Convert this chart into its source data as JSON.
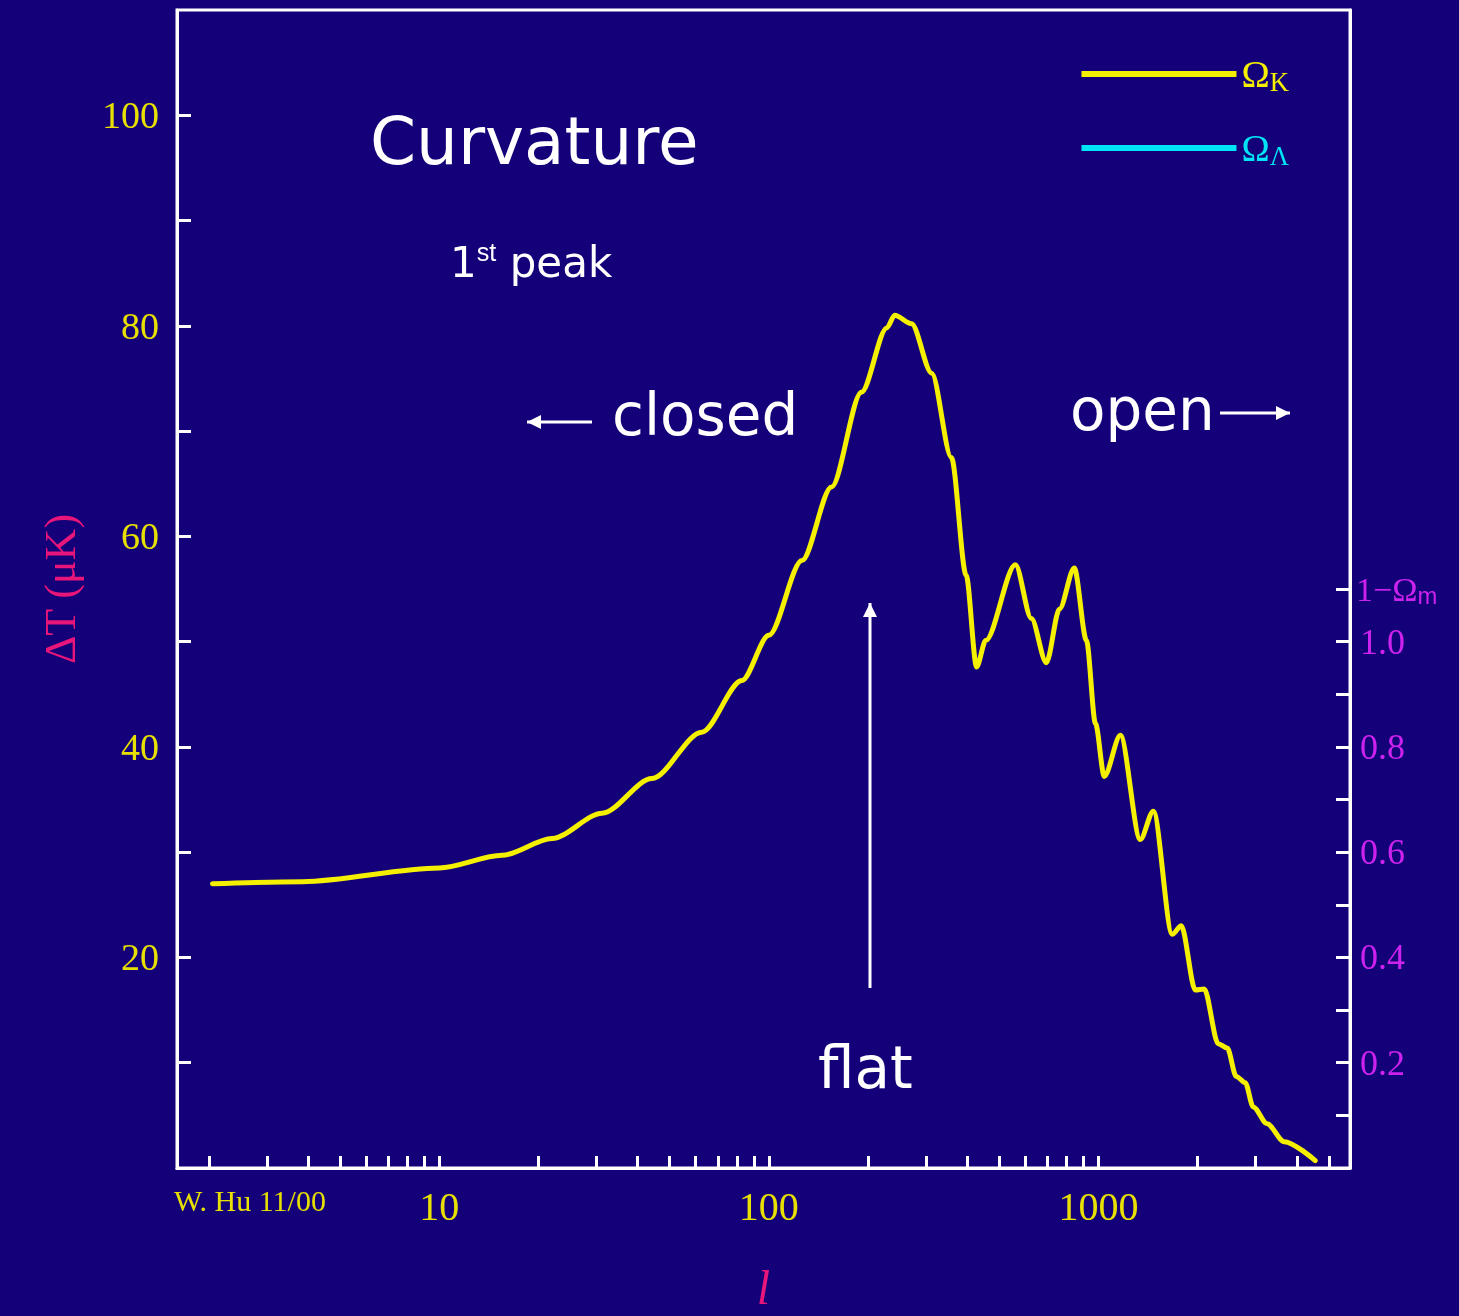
{
  "chart_data": {
    "type": "line",
    "title": "Curvature",
    "xlabel": "l",
    "ylabel": "ΔT (μK)",
    "y2label": "1−Ω$_{m}$",
    "annotations": [
      "1$^{st}$ peak",
      "closed",
      "open",
      "flat",
      "W. Hu 11/00"
    ],
    "log": "x",
    "legend": "top right",
    "grid": false,
    "marker": "none",
    "line_style": "solid",
    "xlim": [
      1.6,
      5800
    ],
    "xticks": [
      {
        "value": 2,
        "label": null
      },
      {
        "value": 3,
        "label": null
      },
      {
        "value": 4,
        "label": null
      },
      {
        "value": 5,
        "label": null
      },
      {
        "value": 6,
        "label": null
      },
      {
        "value": 7,
        "label": null
      },
      {
        "value": 8,
        "label": null
      },
      {
        "value": 9,
        "label": null
      },
      10,
      {
        "value": 20,
        "label": null
      },
      {
        "value": 30,
        "label": null
      },
      {
        "value": 40,
        "label": null
      },
      {
        "value": 50,
        "label": null
      },
      {
        "value": 60,
        "label": null
      },
      {
        "value": 70,
        "label": null
      },
      {
        "value": 80,
        "label": null
      },
      {
        "value": 90,
        "label": null
      },
      100,
      {
        "value": 200,
        "label": null
      },
      {
        "value": 300,
        "label": null
      },
      {
        "value": 400,
        "label": null
      },
      {
        "value": 500,
        "label": null
      },
      {
        "value": 600,
        "label": null
      },
      {
        "value": 700,
        "label": null
      },
      {
        "value": 800,
        "label": null
      },
      {
        "value": 900,
        "label": null
      },
      1000,
      {
        "value": 2000,
        "label": null
      },
      {
        "value": 3000,
        "label": null
      },
      {
        "value": 4000,
        "label": null
      },
      {
        "value": 5000,
        "label": null
      }
    ],
    "ylim": [
      0,
      110
    ],
    "yticks": [
      {
        "value": 10,
        "label": null
      },
      20,
      {
        "value": 30,
        "label": null
      },
      40,
      {
        "value": 50,
        "label": null
      },
      60,
      {
        "value": 70,
        "label": null
      },
      80,
      {
        "value": 90,
        "label": null
      },
      100
    ],
    "y2lim": [
      0,
      2.2
    ],
    "y2ticks": [
      {
        "value": 0.1,
        "label": null
      },
      0.2,
      {
        "value": 0.3,
        "label": null
      },
      0.4,
      {
        "value": 0.5,
        "label": null
      },
      0.6,
      {
        "value": 0.7,
        "label": null
      },
      0.8,
      {
        "value": 0.9,
        "label": null
      },
      {
        "value": 1.0,
        "label": "1.0"
      },
      {
        "value": 1.1,
        "label": null
      }
    ],
    "series": [
      {
        "name": "Ω$_{K}$",
        "color": "#f5f000",
        "x": [
          2.05,
          3.85,
          10,
          15.5,
          22,
          31.2,
          44.2,
          62.6,
          82.8,
          100,
          126,
          155,
          191,
          228,
          241,
          271,
          312,
          358,
          397,
          427,
          455,
          560,
          626,
          695,
          762,
          845,
          920,
          980,
          1042,
          1166,
          1340,
          1468,
          1675,
          1785,
          1968,
          2095,
          2310,
          2460,
          2620,
          2790,
          2950,
          3250,
          3660,
          4550
        ],
        "values": [
          27.0,
          27.2,
          28.5,
          29.7,
          31.3,
          33.7,
          37.0,
          41.4,
          46.3,
          50.6,
          57.7,
          64.7,
          73.7,
          79.8,
          81.0,
          80.2,
          75.5,
          67.5,
          56.3,
          47.6,
          50.1,
          57.3,
          52.2,
          48.0,
          53.1,
          57.0,
          50.1,
          42.2,
          37.2,
          41.1,
          31.2,
          33.9,
          22.2,
          23.0,
          16.9,
          17.0,
          11.8,
          11.4,
          8.7,
          8.1,
          5.8,
          4.2,
          2.5,
          0.7
        ]
      },
      {
        "name": "Ω$_{Λ}$",
        "color": "#00e5f5"
      }
    ]
  }
}
